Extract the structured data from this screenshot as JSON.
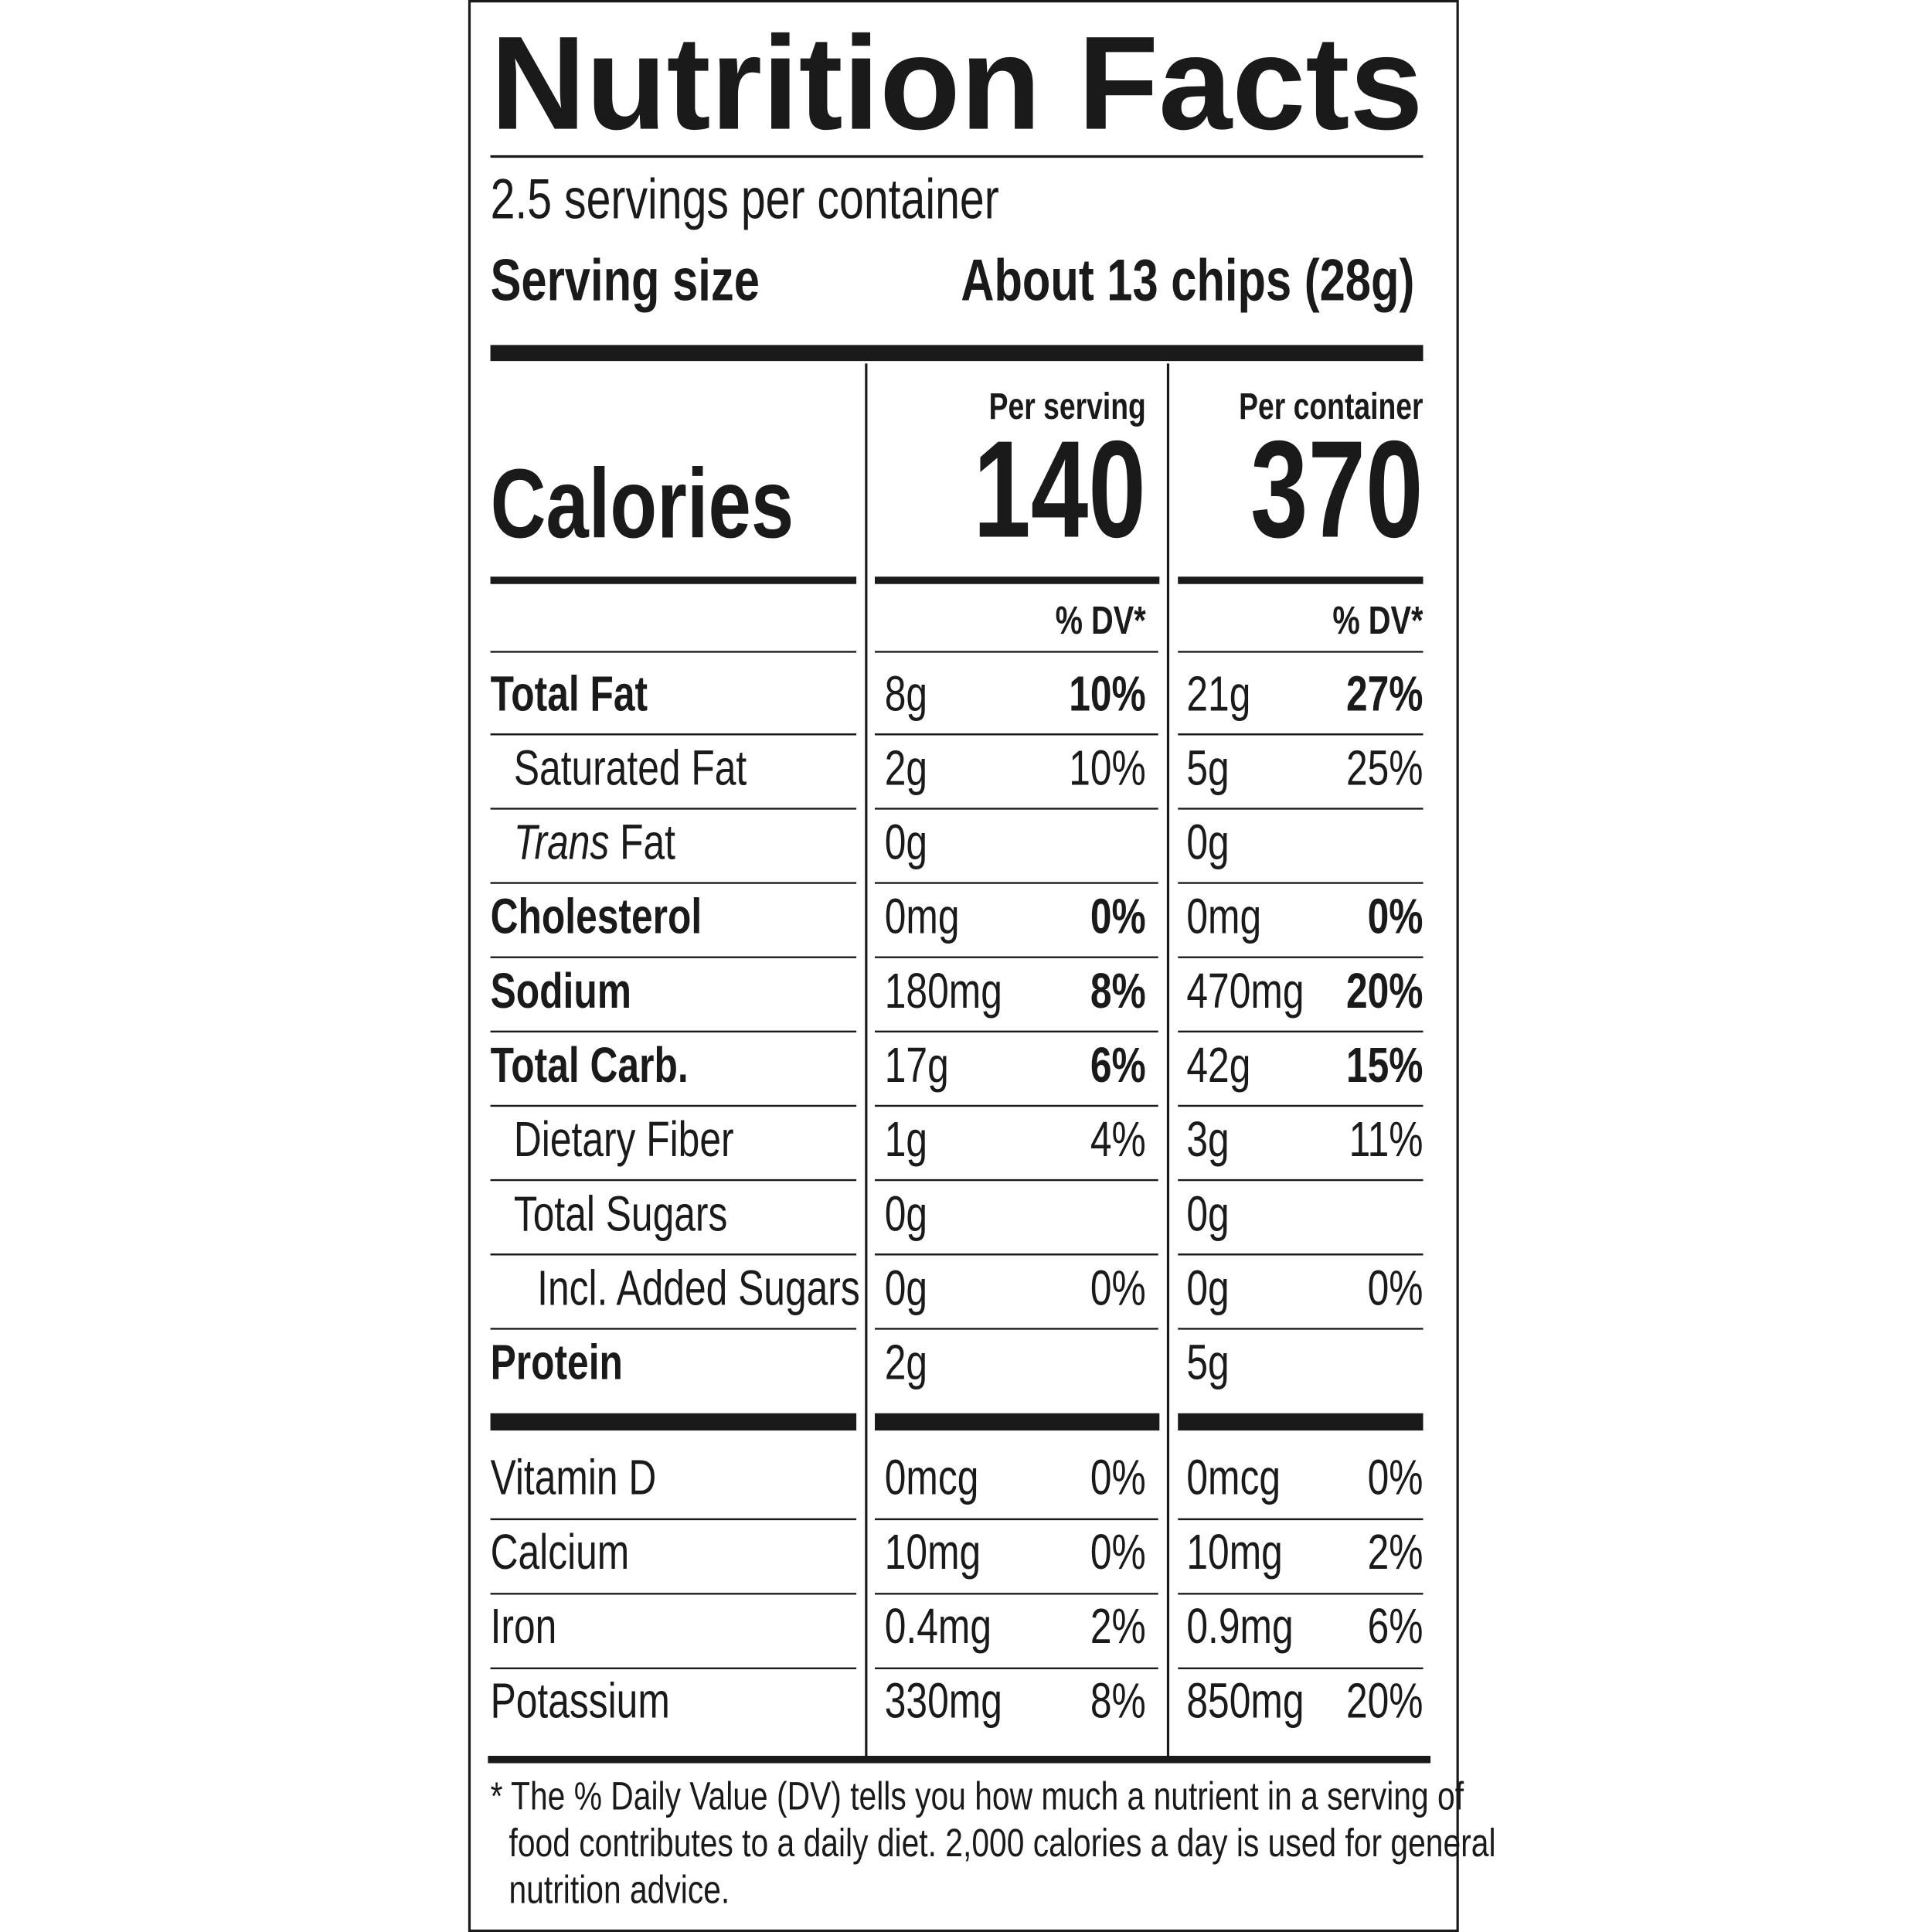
{
  "title": "Nutrition Facts",
  "servings_per_container": "2.5 servings per container",
  "serving_size": {
    "label": "Serving size",
    "value": "About 13 chips (28g)"
  },
  "columns": [
    "Per serving",
    "Per container"
  ],
  "calories": {
    "label": "Calories",
    "values": [
      "140",
      "370"
    ]
  },
  "dv_header": "% DV*",
  "nutrients": [
    {
      "name": "Total Fat",
      "bold": true,
      "indent": 0,
      "serving": {
        "amount": "8g",
        "dv": "10%"
      },
      "container": {
        "amount": "21g",
        "dv": "27%"
      }
    },
    {
      "name": "Saturated Fat",
      "bold": false,
      "indent": 1,
      "serving": {
        "amount": "2g",
        "dv": "10%"
      },
      "container": {
        "amount": "5g",
        "dv": "25%"
      }
    },
    {
      "name": [
        "Trans",
        "Fat"
      ],
      "bold": false,
      "indent": 1,
      "serving": {
        "amount": "0g"
      },
      "container": {
        "amount": "0g"
      }
    },
    {
      "name": "Cholesterol",
      "bold": true,
      "indent": 0,
      "serving": {
        "amount": "0mg",
        "dv": "0%"
      },
      "container": {
        "amount": "0mg",
        "dv": "0%"
      }
    },
    {
      "name": "Sodium",
      "bold": true,
      "indent": 0,
      "serving": {
        "amount": "180mg",
        "dv": "8%"
      },
      "container": {
        "amount": "470mg",
        "dv": "20%"
      }
    },
    {
      "name": "Total Carb.",
      "bold": true,
      "indent": 0,
      "serving": {
        "amount": "17g",
        "dv": "6%"
      },
      "container": {
        "amount": "42g",
        "dv": "15%"
      }
    },
    {
      "name": "Dietary Fiber",
      "bold": false,
      "indent": 1,
      "serving": {
        "amount": "1g",
        "dv": "4%"
      },
      "container": {
        "amount": "3g",
        "dv": "11%"
      }
    },
    {
      "name": "Total Sugars",
      "bold": false,
      "indent": 1,
      "serving": {
        "amount": "0g"
      },
      "container": {
        "amount": "0g"
      }
    },
    {
      "name": "Incl. Added Sugars",
      "bold": false,
      "indent": 2,
      "serving": {
        "amount": "0g",
        "dv": "0%"
      },
      "container": {
        "amount": "0g",
        "dv": "0%"
      }
    },
    {
      "name": "Protein",
      "bold": true,
      "indent": 0,
      "serving": {
        "amount": "2g"
      },
      "container": {
        "amount": "5g"
      }
    }
  ],
  "vitamins": [
    {
      "name": "Vitamin D",
      "serving": {
        "amount": "0mcg",
        "dv": "0%"
      },
      "container": {
        "amount": "0mcg",
        "dv": "0%"
      }
    },
    {
      "name": "Calcium",
      "serving": {
        "amount": "10mg",
        "dv": "0%"
      },
      "container": {
        "amount": "10mg",
        "dv": "2%"
      }
    },
    {
      "name": "Iron",
      "serving": {
        "amount": "0.4mg",
        "dv": "2%"
      },
      "container": {
        "amount": "0.9mg",
        "dv": "6%"
      }
    },
    {
      "name": "Potassium",
      "serving": {
        "amount": "330mg",
        "dv": "8%"
      },
      "container": {
        "amount": "850mg",
        "dv": "20%"
      }
    }
  ],
  "footnote": [
    "* The % Daily Value (DV) tells you how much a nutrient in a serving of",
    "food contributes to a daily diet. 2,000 calories a day is used for general",
    "nutrition advice."
  ]
}
